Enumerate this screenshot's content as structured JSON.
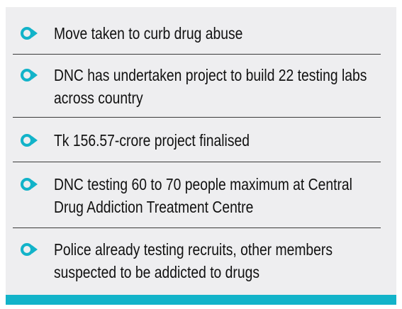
{
  "items": [
    "Move taken to curb drug abuse",
    "DNC has undertaken project to build 22 testing labs across country",
    "Tk 156.57-crore project finalised",
    "DNC testing 60 to 70 people maximum at Central Drug Addiction Treatment Centre",
    "Police already testing recruits, other members suspected to be addicted to drugs"
  ]
}
